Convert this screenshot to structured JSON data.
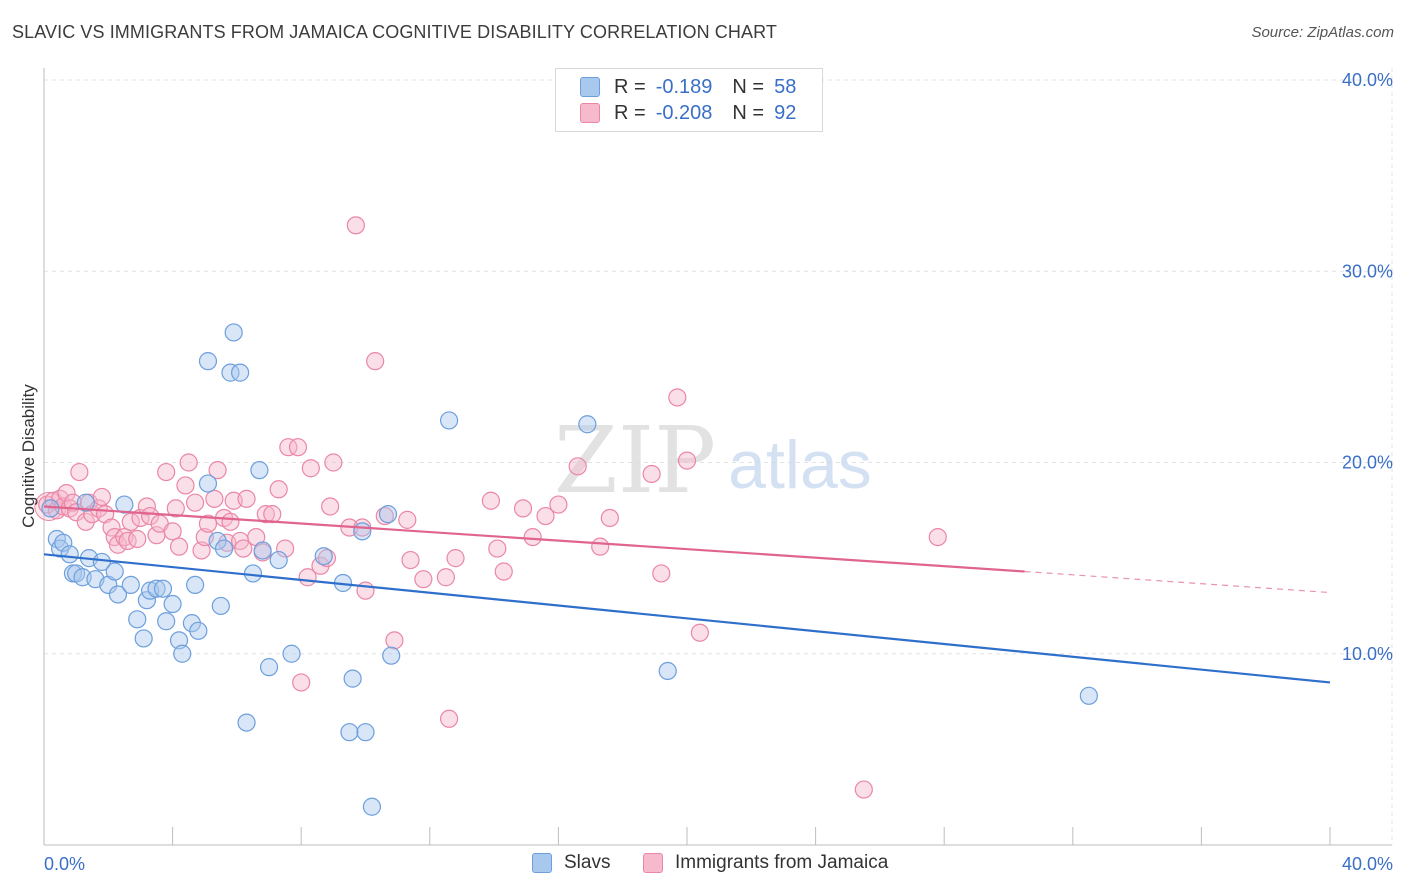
{
  "header": {
    "title": "SLAVIC VS IMMIGRANTS FROM JAMAICA COGNITIVE DISABILITY CORRELATION CHART",
    "source": "Source: ZipAtlas.com"
  },
  "watermark": {
    "zip": "ZIP",
    "atlas": "atlas"
  },
  "legend_stats": {
    "series1": {
      "r_label": "R =",
      "r_value": "-0.189",
      "n_label": "N =",
      "n_value": "58"
    },
    "series2": {
      "r_label": "R =",
      "r_value": "-0.208",
      "n_label": "N =",
      "n_value": "92"
    }
  },
  "colors": {
    "blue_fill": "#a9c8ee",
    "blue_stroke": "#6d9fdc",
    "blue_line": "#2f6fcc",
    "pink_fill": "#f7b9cc",
    "pink_stroke": "#ea87a6",
    "pink_line": "#e0648e",
    "tick_label": "#3a6fc8",
    "grid": "#e2e2e2"
  },
  "chart_data": {
    "type": "scatter",
    "title": "SLAVIC VS IMMIGRANTS FROM JAMAICA COGNITIVE DISABILITY CORRELATION CHART",
    "xlabel": "",
    "ylabel": "Cognitive Disability",
    "xlim": [
      0,
      40
    ],
    "ylim": [
      0,
      40
    ],
    "x_tick_labels": [
      "0.0%",
      "40.0%"
    ],
    "y_ticks": [
      10,
      20,
      30,
      40
    ],
    "y_tick_labels": [
      "10.0%",
      "20.0%",
      "30.0%",
      "40.0%"
    ],
    "grid": true,
    "legend_position": "bottom",
    "series": [
      {
        "name": "Slavs",
        "color": "blue",
        "trend": {
          "x": [
            0,
            40
          ],
          "y": [
            15.2,
            8.5
          ]
        },
        "points": [
          [
            0.2,
            17.6
          ],
          [
            0.4,
            16.0
          ],
          [
            0.5,
            15.5
          ],
          [
            0.6,
            15.8
          ],
          [
            0.8,
            15.2
          ],
          [
            0.9,
            14.2
          ],
          [
            1.0,
            14.2
          ],
          [
            1.2,
            14.0
          ],
          [
            1.4,
            15.0
          ],
          [
            1.6,
            13.9
          ],
          [
            1.8,
            14.8
          ],
          [
            2.0,
            13.6
          ],
          [
            2.2,
            14.3
          ],
          [
            2.3,
            13.1
          ],
          [
            2.5,
            17.8
          ],
          [
            2.7,
            13.6
          ],
          [
            2.9,
            11.8
          ],
          [
            3.1,
            10.8
          ],
          [
            3.2,
            12.8
          ],
          [
            3.3,
            13.3
          ],
          [
            3.5,
            13.4
          ],
          [
            3.7,
            13.4
          ],
          [
            3.8,
            11.7
          ],
          [
            4.0,
            12.6
          ],
          [
            4.2,
            10.7
          ],
          [
            4.3,
            10.0
          ],
          [
            4.6,
            11.6
          ],
          [
            4.7,
            13.6
          ],
          [
            4.8,
            11.2
          ],
          [
            5.1,
            18.9
          ],
          [
            5.1,
            25.3
          ],
          [
            5.4,
            15.9
          ],
          [
            5.5,
            12.5
          ],
          [
            5.6,
            15.5
          ],
          [
            5.8,
            24.7
          ],
          [
            5.9,
            26.8
          ],
          [
            6.1,
            24.7
          ],
          [
            6.3,
            6.4
          ],
          [
            6.5,
            14.2
          ],
          [
            6.7,
            19.6
          ],
          [
            6.8,
            15.4
          ],
          [
            7.0,
            9.3
          ],
          [
            7.3,
            14.9
          ],
          [
            7.7,
            10.0
          ],
          [
            8.7,
            15.1
          ],
          [
            9.3,
            13.7
          ],
          [
            9.5,
            5.9
          ],
          [
            9.6,
            8.7
          ],
          [
            9.9,
            16.4
          ],
          [
            10.0,
            5.9
          ],
          [
            10.2,
            2.0
          ],
          [
            10.7,
            17.3
          ],
          [
            10.8,
            9.9
          ],
          [
            12.6,
            22.2
          ],
          [
            16.9,
            22.0
          ],
          [
            19.4,
            9.1
          ],
          [
            32.5,
            7.8
          ],
          [
            1.3,
            17.9
          ]
        ]
      },
      {
        "name": "Immigrants from Jamaica",
        "color": "pink",
        "trend": {
          "x": [
            0,
            30.5
          ],
          "y": [
            17.7,
            14.3
          ]
        },
        "trend_dashed": {
          "x": [
            30.5,
            40
          ],
          "y": [
            14.3,
            13.2
          ]
        },
        "points": [
          [
            0.1,
            17.8
          ],
          [
            0.3,
            18.0
          ],
          [
            0.4,
            17.5
          ],
          [
            0.5,
            18.1
          ],
          [
            0.6,
            17.7
          ],
          [
            0.7,
            18.4
          ],
          [
            0.8,
            17.6
          ],
          [
            0.9,
            17.9
          ],
          [
            1.0,
            17.4
          ],
          [
            1.1,
            19.5
          ],
          [
            1.3,
            16.9
          ],
          [
            1.4,
            17.9
          ],
          [
            1.5,
            17.3
          ],
          [
            1.7,
            17.6
          ],
          [
            1.8,
            18.2
          ],
          [
            1.9,
            17.3
          ],
          [
            2.1,
            16.6
          ],
          [
            2.2,
            16.1
          ],
          [
            2.3,
            15.7
          ],
          [
            2.5,
            16.1
          ],
          [
            2.6,
            15.9
          ],
          [
            2.7,
            16.9
          ],
          [
            2.9,
            16.0
          ],
          [
            3.0,
            17.1
          ],
          [
            3.2,
            17.7
          ],
          [
            3.3,
            17.2
          ],
          [
            3.5,
            16.2
          ],
          [
            3.6,
            16.8
          ],
          [
            3.8,
            19.5
          ],
          [
            4.0,
            16.4
          ],
          [
            4.1,
            17.6
          ],
          [
            4.2,
            15.6
          ],
          [
            4.4,
            18.8
          ],
          [
            4.5,
            20.0
          ],
          [
            4.7,
            17.9
          ],
          [
            4.9,
            15.4
          ],
          [
            5.0,
            16.1
          ],
          [
            5.1,
            16.8
          ],
          [
            5.3,
            18.1
          ],
          [
            5.4,
            19.6
          ],
          [
            5.6,
            17.1
          ],
          [
            5.7,
            15.8
          ],
          [
            5.8,
            16.9
          ],
          [
            5.9,
            18.0
          ],
          [
            6.1,
            15.9
          ],
          [
            6.2,
            15.5
          ],
          [
            6.3,
            18.1
          ],
          [
            6.6,
            16.1
          ],
          [
            6.8,
            15.3
          ],
          [
            6.9,
            17.3
          ],
          [
            7.1,
            17.3
          ],
          [
            7.3,
            18.6
          ],
          [
            7.5,
            15.5
          ],
          [
            7.6,
            20.8
          ],
          [
            7.9,
            20.8
          ],
          [
            8.0,
            8.5
          ],
          [
            8.2,
            14.0
          ],
          [
            8.3,
            19.7
          ],
          [
            8.6,
            14.6
          ],
          [
            8.8,
            15.0
          ],
          [
            8.9,
            17.7
          ],
          [
            9.0,
            20.0
          ],
          [
            9.5,
            16.6
          ],
          [
            9.7,
            32.4
          ],
          [
            9.9,
            16.6
          ],
          [
            10.0,
            13.3
          ],
          [
            10.3,
            25.3
          ],
          [
            10.6,
            17.2
          ],
          [
            10.9,
            10.7
          ],
          [
            11.3,
            17.0
          ],
          [
            11.4,
            14.9
          ],
          [
            11.8,
            13.9
          ],
          [
            12.5,
            14.0
          ],
          [
            12.6,
            6.6
          ],
          [
            12.8,
            15.0
          ],
          [
            13.9,
            18.0
          ],
          [
            14.1,
            15.5
          ],
          [
            14.3,
            14.3
          ],
          [
            14.9,
            17.6
          ],
          [
            15.2,
            16.1
          ],
          [
            15.6,
            17.2
          ],
          [
            16.0,
            17.8
          ],
          [
            16.6,
            19.8
          ],
          [
            17.3,
            15.6
          ],
          [
            17.6,
            17.1
          ],
          [
            18.9,
            19.4
          ],
          [
            19.2,
            14.2
          ],
          [
            19.7,
            23.4
          ],
          [
            20.0,
            20.1
          ],
          [
            20.4,
            11.1
          ],
          [
            25.5,
            2.9
          ],
          [
            27.8,
            16.1
          ]
        ]
      }
    ]
  }
}
